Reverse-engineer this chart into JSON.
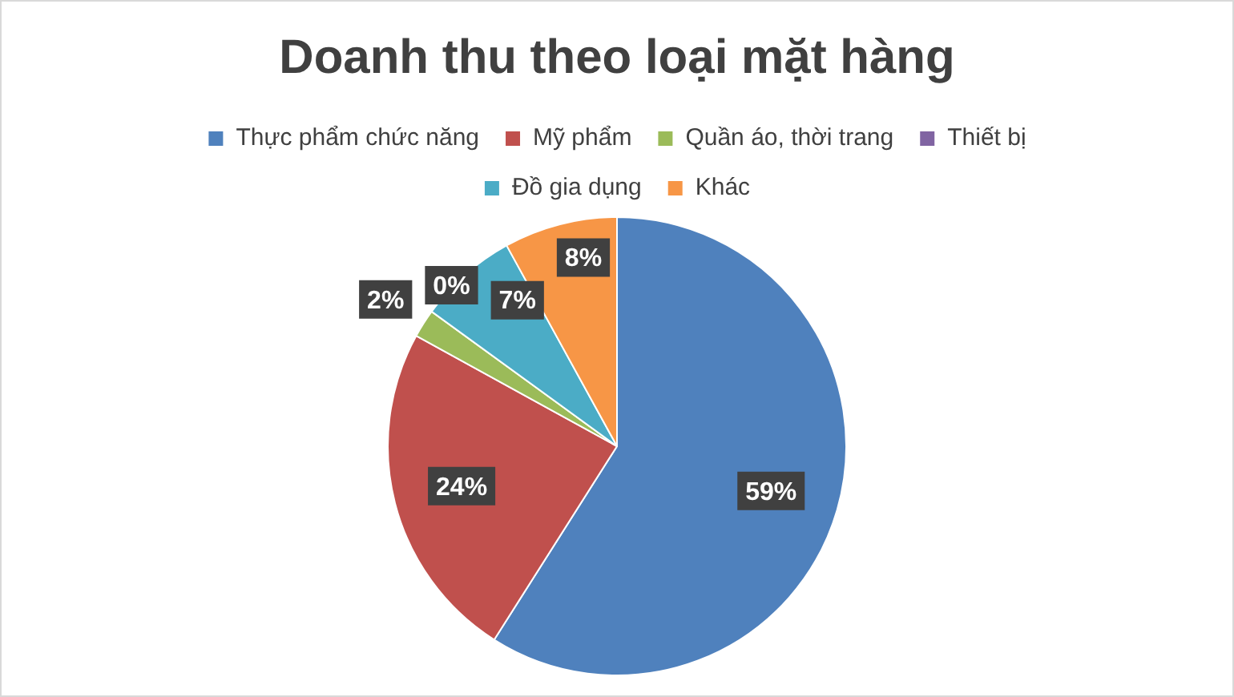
{
  "chart_data": {
    "type": "pie",
    "title": "Doanh thu theo loại mặt hàng",
    "categories": [
      "Thực phẩm chức năng",
      "Mỹ phẩm",
      "Quần áo, thời trang",
      "Thiết bị",
      "Đồ gia dụng",
      "Khác"
    ],
    "values": [
      59,
      24,
      2,
      0,
      7,
      8
    ],
    "colors": [
      "#4f81bd",
      "#c0504d",
      "#9bbb59",
      "#8064a2",
      "#4bacc6",
      "#f79646"
    ],
    "value_labels": [
      "59%",
      "24%",
      "2%",
      "0%",
      "7%",
      "8%"
    ],
    "legend": "top"
  }
}
